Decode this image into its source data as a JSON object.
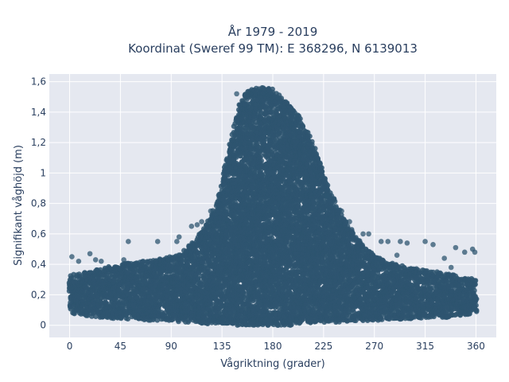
{
  "chart_data": {
    "type": "scatter",
    "title": "År 1979 - 2019",
    "subtitle": "Koordinat (Sweref 99 TM): E 368296, N 6139013",
    "xlabel": "Vågriktning (grader)",
    "ylabel": "Signifikant våghöjd (m)",
    "xlim": [
      -18,
      378
    ],
    "ylim": [
      -0.08,
      1.65
    ],
    "x_ticks": [
      0,
      45,
      90,
      135,
      180,
      225,
      270,
      315,
      360
    ],
    "x_tick_labels": [
      "0",
      "45",
      "90",
      "135",
      "180",
      "225",
      "270",
      "315",
      "360"
    ],
    "y_ticks": [
      0,
      0.2,
      0.4,
      0.6,
      0.8,
      1,
      1.2,
      1.4,
      1.6
    ],
    "y_tick_labels": [
      "0",
      "0,2",
      "0,4",
      "0,6",
      "0,8",
      "1",
      "1,2",
      "1,4",
      "1,6"
    ],
    "grid": true,
    "marker_color": "#2e5570",
    "background_color": "#e5e8f0",
    "envelope": {
      "x": [
        0,
        15,
        30,
        45,
        60,
        75,
        90,
        100,
        110,
        120,
        130,
        135,
        140,
        145,
        150,
        155,
        160,
        165,
        170,
        175,
        180,
        185,
        190,
        195,
        200,
        205,
        210,
        215,
        220,
        225,
        230,
        240,
        250,
        260,
        270,
        280,
        290,
        300,
        315,
        330,
        345,
        360
      ],
      "y_max": [
        0.33,
        0.35,
        0.38,
        0.4,
        0.42,
        0.43,
        0.45,
        0.48,
        0.55,
        0.65,
        0.8,
        0.95,
        1.12,
        1.3,
        1.45,
        1.52,
        1.55,
        1.56,
        1.56,
        1.56,
        1.55,
        1.52,
        1.48,
        1.45,
        1.4,
        1.35,
        1.28,
        1.2,
        1.1,
        1.0,
        0.9,
        0.75,
        0.62,
        0.52,
        0.46,
        0.42,
        0.4,
        0.38,
        0.36,
        0.35,
        0.32,
        0.3
      ],
      "y_min": [
        0.08,
        0.06,
        0.05,
        0.04,
        0.04,
        0.03,
        0.03,
        0.02,
        0.02,
        0.01,
        0.01,
        0.01,
        0.01,
        0.0,
        0.0,
        0.0,
        0.0,
        0.0,
        0.0,
        0.0,
        0.0,
        0.0,
        0.0,
        0.0,
        0.01,
        0.01,
        0.01,
        0.01,
        0.02,
        0.02,
        0.02,
        0.02,
        0.03,
        0.03,
        0.03,
        0.04,
        0.04,
        0.04,
        0.05,
        0.05,
        0.06,
        0.08
      ]
    },
    "outlier_points": [
      {
        "x": 2,
        "y": 0.45
      },
      {
        "x": 8,
        "y": 0.42
      },
      {
        "x": 18,
        "y": 0.47
      },
      {
        "x": 23,
        "y": 0.43
      },
      {
        "x": 28,
        "y": 0.42
      },
      {
        "x": 48,
        "y": 0.43
      },
      {
        "x": 52,
        "y": 0.55
      },
      {
        "x": 78,
        "y": 0.55
      },
      {
        "x": 95,
        "y": 0.55
      },
      {
        "x": 97,
        "y": 0.58
      },
      {
        "x": 108,
        "y": 0.65
      },
      {
        "x": 113,
        "y": 0.66
      },
      {
        "x": 117,
        "y": 0.68
      },
      {
        "x": 125,
        "y": 0.75
      },
      {
        "x": 148,
        "y": 1.52
      },
      {
        "x": 228,
        "y": 0.85
      },
      {
        "x": 236,
        "y": 0.78
      },
      {
        "x": 241,
        "y": 0.75
      },
      {
        "x": 248,
        "y": 0.68
      },
      {
        "x": 260,
        "y": 0.6
      },
      {
        "x": 265,
        "y": 0.6
      },
      {
        "x": 276,
        "y": 0.55
      },
      {
        "x": 282,
        "y": 0.55
      },
      {
        "x": 293,
        "y": 0.55
      },
      {
        "x": 299,
        "y": 0.54
      },
      {
        "x": 315,
        "y": 0.55
      },
      {
        "x": 322,
        "y": 0.53
      },
      {
        "x": 342,
        "y": 0.51
      },
      {
        "x": 350,
        "y": 0.48
      },
      {
        "x": 357,
        "y": 0.5
      },
      {
        "x": 359,
        "y": 0.48
      },
      {
        "x": 332,
        "y": 0.44
      },
      {
        "x": 290,
        "y": 0.46
      },
      {
        "x": 338,
        "y": 0.38
      }
    ]
  }
}
